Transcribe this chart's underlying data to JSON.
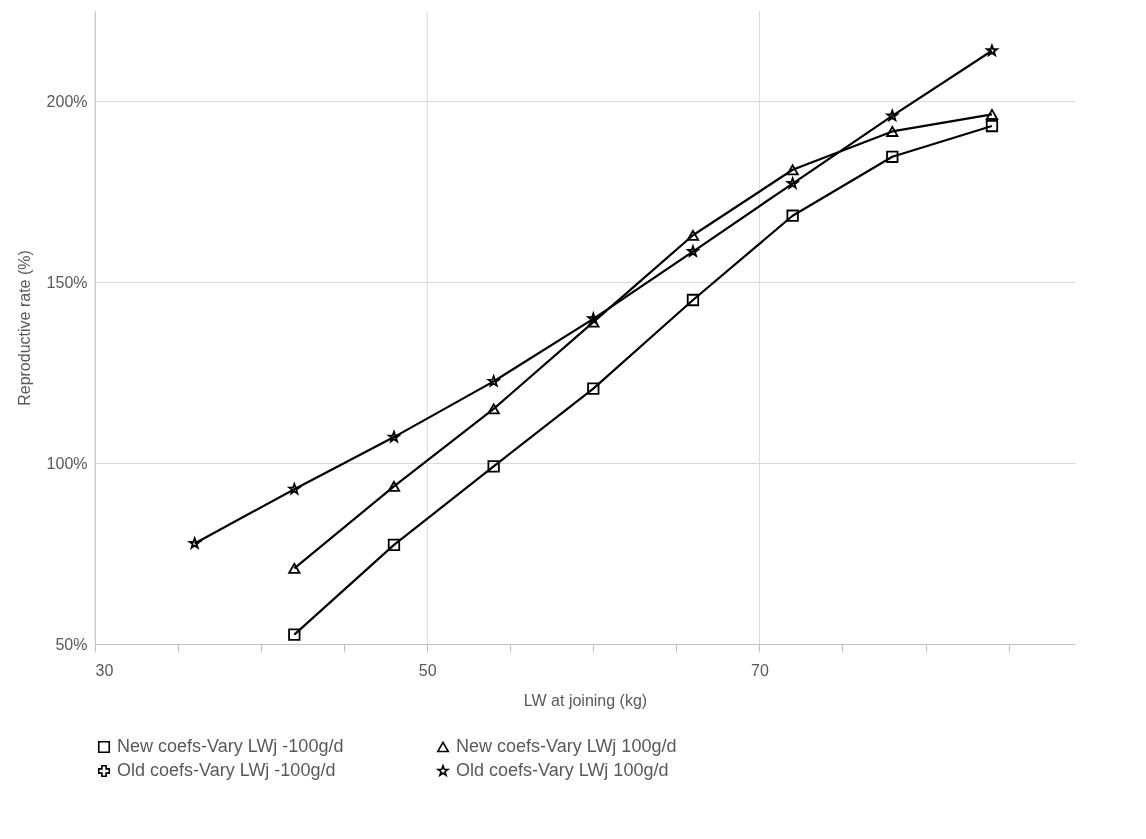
{
  "chart_data": {
    "type": "line",
    "xlabel": "LW at joining (kg)",
    "ylabel": "Reproductive rate (%)",
    "x": [
      36,
      42,
      48,
      54,
      60,
      66,
      72,
      78,
      84
    ],
    "xlim": [
      30,
      89
    ],
    "xticks": [
      30,
      {
        "value": 35,
        "label": null
      },
      {
        "value": 40,
        "label": null
      },
      {
        "value": 45,
        "label": null
      },
      50,
      {
        "value": 55,
        "label": null
      },
      {
        "value": 60,
        "label": null
      },
      {
        "value": 65,
        "label": null
      },
      70,
      {
        "value": 75,
        "label": null
      },
      {
        "value": 80,
        "label": null
      },
      {
        "value": 85,
        "label": null
      }
    ],
    "ylim": [
      50,
      225
    ],
    "yticks": [
      {
        "value": 50,
        "label": "50%"
      },
      {
        "value": 100,
        "label": "100%"
      },
      {
        "value": 150,
        "label": "150%"
      },
      {
        "value": 200,
        "label": "200%"
      }
    ],
    "grid": true,
    "legend": "bottom",
    "line_style": "solid",
    "series": [
      {
        "name": "New coefs-Vary LWj -100g/d",
        "color": "#000000",
        "marker": "square",
        "values": [
          null,
          52.6,
          77.4,
          99.1,
          120.6,
          145.1,
          168.4,
          184.7,
          193.2
        ]
      },
      {
        "name": "New coefs-Vary LWj 100g/d",
        "color": "#000000",
        "marker": "triangle",
        "values": [
          null,
          70.9,
          93.6,
          115.0,
          139.0,
          163.0,
          181.1,
          191.7,
          196.4
        ]
      },
      {
        "name": "Old coefs-Vary LWj -100g/d",
        "color": "#000000",
        "marker": "cross",
        "values": [
          null,
          null,
          null,
          null,
          null,
          null,
          null,
          null,
          null
        ]
      },
      {
        "name": "Old coefs-Vary LWj 100g/d",
        "color": "#000000",
        "marker": "star",
        "values": [
          77.8,
          92.8,
          107.2,
          122.6,
          139.9,
          158.5,
          177.3,
          196.0,
          214.0
        ]
      }
    ]
  }
}
